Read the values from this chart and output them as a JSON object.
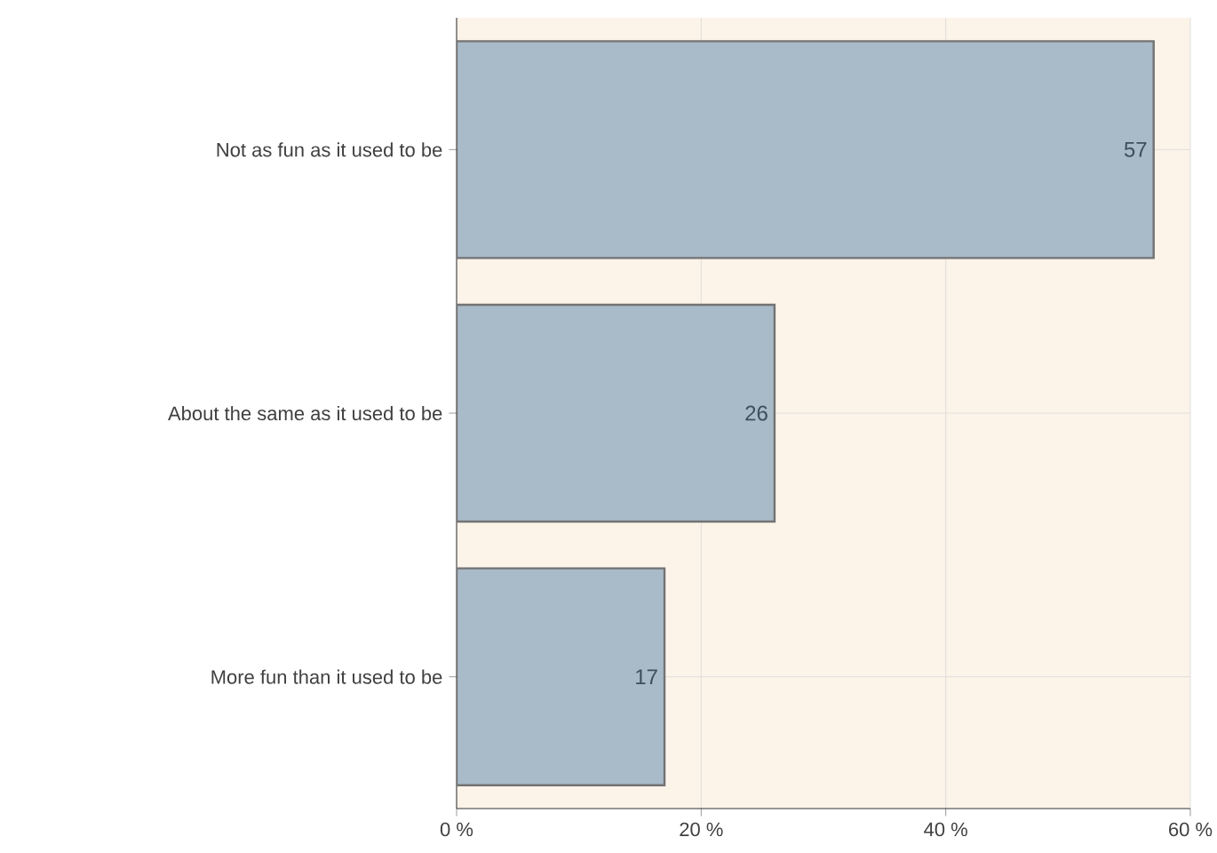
{
  "chart_data": {
    "type": "bar",
    "orientation": "horizontal",
    "categories": [
      "Not as fun as it used to be",
      "About the same as it used to be",
      "More fun than it used to be"
    ],
    "values": [
      57,
      26,
      17
    ],
    "color": "#a9bac8",
    "data_labels": true,
    "xlim": [
      0,
      60
    ],
    "xticks": [
      {
        "value": 0,
        "label": "0 %"
      },
      {
        "value": 20,
        "label": "20 %"
      },
      {
        "value": 40,
        "label": "40 %"
      },
      {
        "value": 60,
        "label": "60 %"
      }
    ],
    "grid": true
  }
}
